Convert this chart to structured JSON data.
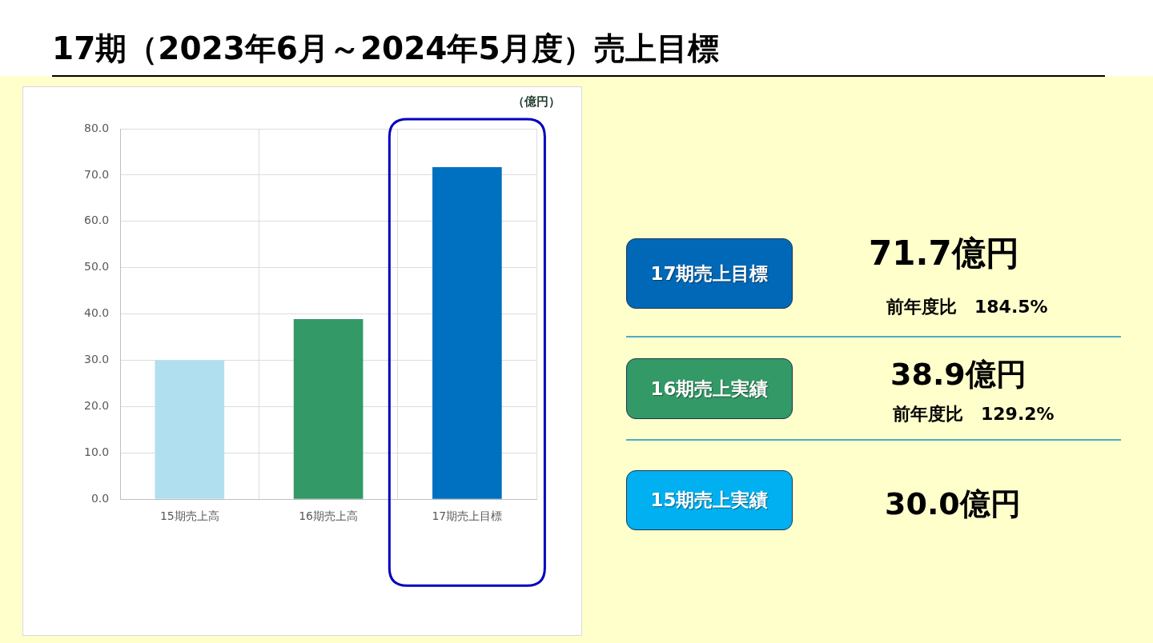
{
  "chart_data": {
    "type": "bar",
    "title": "17期（2023年6月～2024年5月度）売上目標",
    "ylabel": "（億円）",
    "categories": [
      "15期売上高",
      "16期売上高",
      "17期売上目標"
    ],
    "values": [
      30.0,
      38.9,
      71.7
    ],
    "colors": [
      "#b0dff0",
      "#339966",
      "#0070c0"
    ],
    "ylim": [
      0,
      80
    ],
    "yticks": [
      {
        "value": 0,
        "label": "0.0"
      },
      {
        "value": 10,
        "label": "10.0"
      },
      {
        "value": 20,
        "label": "20.0"
      },
      {
        "value": 30,
        "label": "30.0"
      },
      {
        "value": 40,
        "label": "40.0"
      },
      {
        "value": 50,
        "label": "50.0"
      },
      {
        "value": 60,
        "label": "60.0"
      },
      {
        "value": 70,
        "label": "70.0"
      },
      {
        "value": 80,
        "label": "80.0"
      }
    ],
    "grid": true,
    "annotations": [
      "17期売上目標",
      "71.7億円",
      "前年度比　184.5%",
      "16期売上実績",
      "38.9億円",
      "前年度比　129.2%",
      "15期売上実績",
      "30.0億円"
    ]
  }
}
